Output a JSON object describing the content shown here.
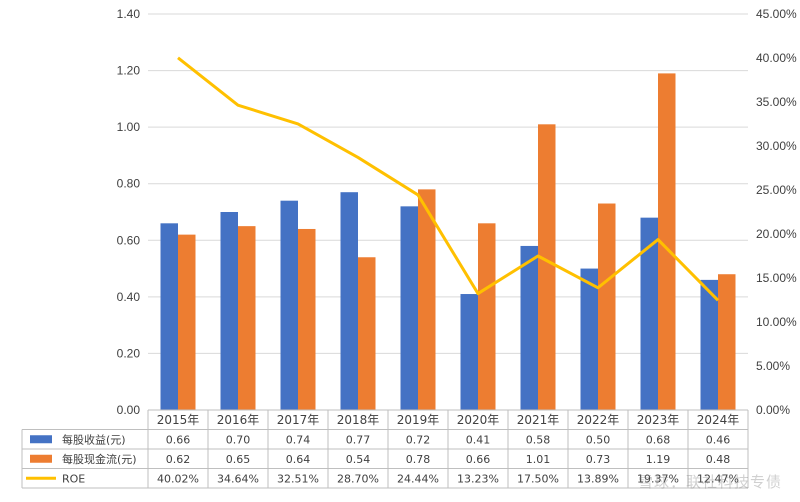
{
  "chart_data": {
    "type": "bar",
    "categories": [
      "2015年",
      "2016年",
      "2017年",
      "2018年",
      "2019年",
      "2020年",
      "2021年",
      "2022年",
      "2023年",
      "2024年"
    ],
    "series": [
      {
        "name": "每股收益(元)",
        "kind": "bar",
        "axis": "left",
        "color": "#4472C4",
        "values": [
          0.66,
          0.7,
          0.74,
          0.77,
          0.72,
          0.41,
          0.58,
          0.5,
          0.68,
          0.46
        ],
        "labels": [
          "0.66",
          "0.70",
          "0.74",
          "0.77",
          "0.72",
          "0.41",
          "0.58",
          "0.50",
          "0.68",
          "0.46"
        ]
      },
      {
        "name": "每股现金流(元)",
        "kind": "bar",
        "axis": "left",
        "color": "#ED7D31",
        "values": [
          0.62,
          0.65,
          0.64,
          0.54,
          0.78,
          0.66,
          1.01,
          0.73,
          1.19,
          0.48
        ],
        "labels": [
          "0.62",
          "0.65",
          "0.64",
          "0.54",
          "0.78",
          "0.66",
          "1.01",
          "0.73",
          "1.19",
          "0.48"
        ]
      },
      {
        "name": "ROE",
        "kind": "line",
        "axis": "right",
        "color": "#FFC000",
        "values": [
          40.02,
          34.64,
          32.51,
          28.7,
          24.44,
          13.23,
          17.5,
          13.89,
          19.37,
          12.47
        ],
        "labels": [
          "40.02%",
          "34.64%",
          "32.51%",
          "28.70%",
          "24.44%",
          "13.23%",
          "17.50%",
          "13.89%",
          "19.37%",
          "12.47%"
        ]
      }
    ],
    "y_left": {
      "ylim": [
        0,
        1.4
      ],
      "ticks": [
        "0.00",
        "0.20",
        "0.40",
        "0.60",
        "0.80",
        "1.00",
        "1.20",
        "1.40"
      ]
    },
    "y_right": {
      "ylim": [
        0,
        45
      ],
      "ticks": [
        "0.00%",
        "5.00%",
        "10.00%",
        "15.00%",
        "20.00%",
        "25.00%",
        "30.00%",
        "35.00%",
        "40.00%",
        "45.00%"
      ]
    },
    "grid": true,
    "data_table": true
  },
  "watermark": "雪球：联社科技专债"
}
